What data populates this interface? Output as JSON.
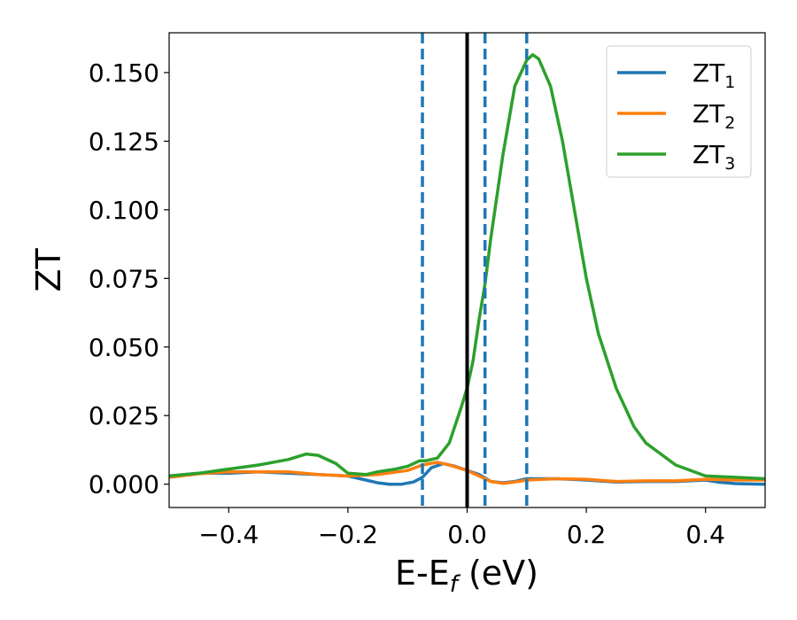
{
  "chart_data": {
    "type": "line",
    "xlabel": {
      "main": "E-E",
      "sub": "f",
      "rest": " (eV)"
    },
    "ylabel": "ZT",
    "xlim": [
      -0.5,
      0.5
    ],
    "ylim": [
      -0.0085,
      0.1645
    ],
    "xticks": [
      -0.4,
      -0.2,
      0.0,
      0.2,
      0.4
    ],
    "xtick_labels": [
      "−0.4",
      "−0.2",
      "0.0",
      "0.2",
      "0.4"
    ],
    "yticks": [
      0.0,
      0.025,
      0.05,
      0.075,
      0.1,
      0.125,
      0.15
    ],
    "ytick_labels": [
      "0.000",
      "0.025",
      "0.050",
      "0.075",
      "0.100",
      "0.125",
      "0.150"
    ],
    "grid": false,
    "legend_position": "top-right",
    "vlines": [
      {
        "x": -0.075,
        "style": "dashed",
        "color": "#1f77b4"
      },
      {
        "x": 0.0,
        "style": "solid",
        "color": "#000000"
      },
      {
        "x": 0.03,
        "style": "dashed",
        "color": "#1f77b4"
      },
      {
        "x": 0.1,
        "style": "dashed",
        "color": "#1f77b4"
      }
    ],
    "series": [
      {
        "name": "ZT",
        "name_sub": "1",
        "color": "#1f77b4",
        "points": [
          [
            -0.5,
            0.003
          ],
          [
            -0.45,
            0.004
          ],
          [
            -0.4,
            0.004
          ],
          [
            -0.35,
            0.0045
          ],
          [
            -0.3,
            0.004
          ],
          [
            -0.25,
            0.0035
          ],
          [
            -0.2,
            0.003
          ],
          [
            -0.17,
            0.0015
          ],
          [
            -0.15,
            0.0005
          ],
          [
            -0.13,
            0.0
          ],
          [
            -0.11,
            0.0
          ],
          [
            -0.09,
            0.0008
          ],
          [
            -0.075,
            0.0025
          ],
          [
            -0.06,
            0.006
          ],
          [
            -0.04,
            0.0075
          ],
          [
            -0.02,
            0.0065
          ],
          [
            0.0,
            0.005
          ],
          [
            0.02,
            0.0035
          ],
          [
            0.04,
            0.001
          ],
          [
            0.06,
            0.0005
          ],
          [
            0.08,
            0.001
          ],
          [
            0.1,
            0.002
          ],
          [
            0.15,
            0.002
          ],
          [
            0.2,
            0.0015
          ],
          [
            0.25,
            0.0008
          ],
          [
            0.3,
            0.001
          ],
          [
            0.35,
            0.001
          ],
          [
            0.4,
            0.0015
          ],
          [
            0.42,
            0.0008
          ],
          [
            0.45,
            0.0002
          ],
          [
            0.5,
            0.0
          ]
        ]
      },
      {
        "name": "ZT",
        "name_sub": "2",
        "color": "#ff7f0e",
        "points": [
          [
            -0.5,
            0.0025
          ],
          [
            -0.45,
            0.0038
          ],
          [
            -0.4,
            0.0045
          ],
          [
            -0.35,
            0.0045
          ],
          [
            -0.3,
            0.0045
          ],
          [
            -0.25,
            0.0035
          ],
          [
            -0.2,
            0.003
          ],
          [
            -0.15,
            0.0035
          ],
          [
            -0.1,
            0.005
          ],
          [
            -0.075,
            0.007
          ],
          [
            -0.05,
            0.008
          ],
          [
            -0.03,
            0.007
          ],
          [
            0.0,
            0.005
          ],
          [
            0.02,
            0.003
          ],
          [
            0.04,
            0.001
          ],
          [
            0.06,
            0.0003
          ],
          [
            0.08,
            0.0008
          ],
          [
            0.1,
            0.0015
          ],
          [
            0.15,
            0.002
          ],
          [
            0.2,
            0.0018
          ],
          [
            0.25,
            0.001
          ],
          [
            0.3,
            0.0012
          ],
          [
            0.35,
            0.0012
          ],
          [
            0.4,
            0.0018
          ],
          [
            0.45,
            0.0015
          ],
          [
            0.5,
            0.0015
          ]
        ]
      },
      {
        "name": "ZT",
        "name_sub": "3",
        "color": "#2ca02c",
        "points": [
          [
            -0.5,
            0.003
          ],
          [
            -0.45,
            0.004
          ],
          [
            -0.4,
            0.0055
          ],
          [
            -0.35,
            0.007
          ],
          [
            -0.3,
            0.009
          ],
          [
            -0.27,
            0.011
          ],
          [
            -0.25,
            0.0105
          ],
          [
            -0.22,
            0.0075
          ],
          [
            -0.2,
            0.004
          ],
          [
            -0.17,
            0.0035
          ],
          [
            -0.15,
            0.0045
          ],
          [
            -0.12,
            0.0055
          ],
          [
            -0.1,
            0.0065
          ],
          [
            -0.08,
            0.0085
          ],
          [
            -0.07,
            0.0085
          ],
          [
            -0.05,
            0.0095
          ],
          [
            -0.03,
            0.015
          ],
          [
            -0.01,
            0.028
          ],
          [
            0.0,
            0.035
          ],
          [
            0.01,
            0.045
          ],
          [
            0.02,
            0.06
          ],
          [
            0.03,
            0.073
          ],
          [
            0.04,
            0.09
          ],
          [
            0.06,
            0.12
          ],
          [
            0.08,
            0.145
          ],
          [
            0.1,
            0.1545
          ],
          [
            0.11,
            0.1565
          ],
          [
            0.12,
            0.155
          ],
          [
            0.14,
            0.145
          ],
          [
            0.16,
            0.125
          ],
          [
            0.18,
            0.1
          ],
          [
            0.2,
            0.075
          ],
          [
            0.22,
            0.055
          ],
          [
            0.25,
            0.035
          ],
          [
            0.28,
            0.021
          ],
          [
            0.3,
            0.015
          ],
          [
            0.35,
            0.007
          ],
          [
            0.4,
            0.003
          ],
          [
            0.45,
            0.0025
          ],
          [
            0.5,
            0.002
          ]
        ]
      }
    ]
  }
}
